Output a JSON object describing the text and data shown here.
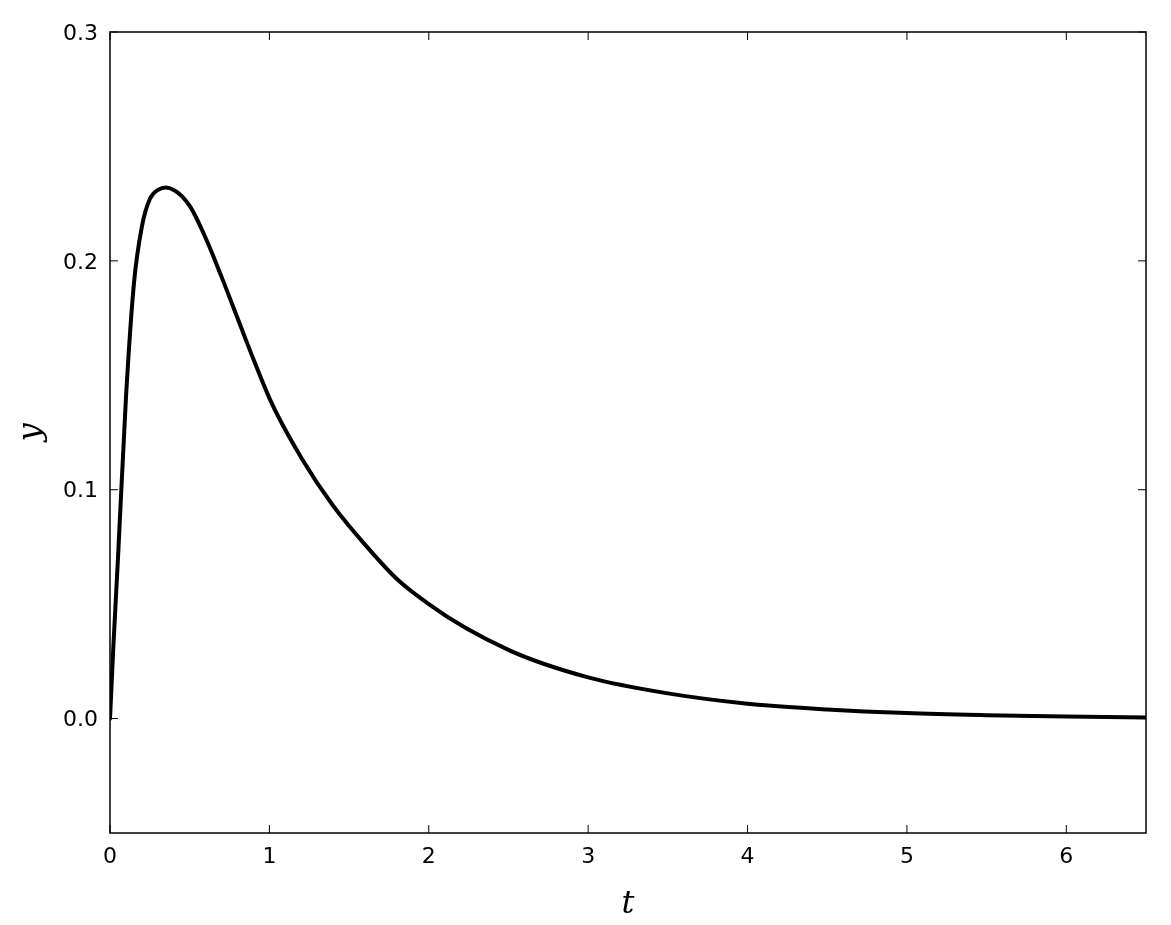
{
  "chart_data": {
    "type": "line",
    "xlabel": "t",
    "ylabel": "y",
    "xlim": [
      0,
      6.5
    ],
    "ylim": [
      -0.05,
      0.3
    ],
    "xticks": [
      0,
      1,
      2,
      3,
      4,
      5,
      6
    ],
    "yticks": [
      {
        "value": 0,
        "label": "0.0"
      },
      {
        "value": 0.1,
        "label": "0.1"
      },
      {
        "value": 0.2,
        "label": "0.2"
      },
      {
        "value": 0.3,
        "label": "0.3"
      }
    ],
    "grid": false,
    "marker": "none",
    "line_style": "solid",
    "series": [
      {
        "color": "#000000",
        "x": [
          0,
          0.02,
          0.05,
          0.1,
          0.15,
          0.2,
          0.25,
          0.3,
          0.35,
          0.4,
          0.5,
          0.6,
          0.7,
          0.8,
          0.9,
          1.0,
          1.2,
          1.4,
          1.6,
          1.8,
          2.0,
          2.5,
          3.0,
          3.5,
          4.0,
          4.5,
          5.0,
          5.5,
          6.0,
          6.5
        ],
        "values": [
          0,
          0.03,
          0.07,
          0.14,
          0.19,
          0.215,
          0.227,
          0.231,
          0.232,
          0.231,
          0.224,
          0.21,
          0.193,
          0.175,
          0.157,
          0.14,
          0.114,
          0.093,
          0.076,
          0.061,
          0.05,
          0.03,
          0.018,
          0.011,
          0.0065,
          0.004,
          0.0024,
          0.0015,
          0.0009,
          0.0005
        ]
      }
    ]
  }
}
